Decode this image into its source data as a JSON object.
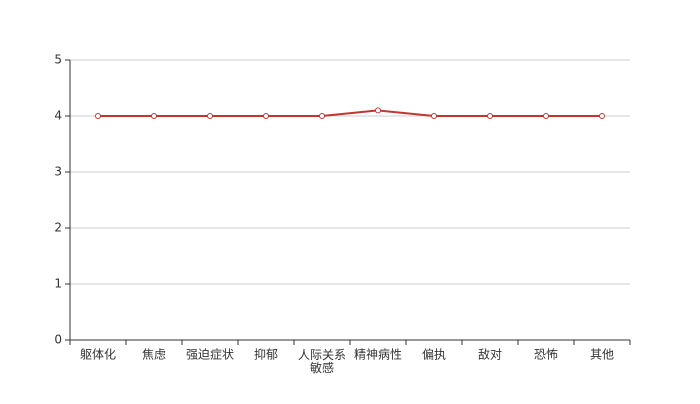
{
  "chart_data": {
    "type": "line",
    "categories": [
      "躯体化",
      "焦虑",
      "强迫症状",
      "抑郁",
      "人际关系敏感",
      "精神病性",
      "偏执",
      "敌对",
      "恐怖",
      "其他"
    ],
    "values": [
      4,
      4,
      4,
      4,
      4,
      4.1,
      4,
      4,
      4,
      4
    ],
    "color": "#c23531",
    "ylim": [
      0,
      5
    ],
    "yticks": [
      0,
      1,
      2,
      3,
      4,
      5
    ],
    "grid": true
  }
}
